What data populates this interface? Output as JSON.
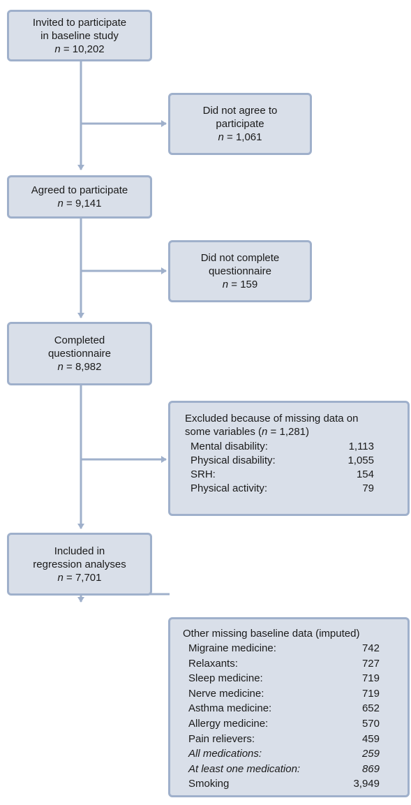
{
  "boxes": {
    "invited": {
      "line1": "Invited to participate",
      "line2": "in baseline study",
      "n_var": "n",
      "n_value": "= 10,202"
    },
    "not_agree": {
      "line1": "Did not agree to",
      "line2": "participate",
      "n_var": "n",
      "n_value": "= 1,061"
    },
    "agreed": {
      "line1": "Agreed to participate",
      "n_var": "n",
      "n_value": "= 9,141"
    },
    "not_complete": {
      "line1": "Did not complete",
      "line2": "questionnaire",
      "n_var": "n",
      "n_value": "= 159"
    },
    "completed": {
      "line1": "Completed",
      "line2": "questionnaire",
      "n_var": "n",
      "n_value": "= 8,982"
    },
    "excluded": {
      "header1": "Excluded because of missing data on",
      "header2_pre": "some variables (",
      "header2_var": "n",
      "header2_post": " = 1,281)",
      "rows": [
        {
          "label": "Mental disability:",
          "value": "1,113"
        },
        {
          "label": "Physical disability:",
          "value": "1,055"
        },
        {
          "label": "SRH:",
          "value": "154"
        },
        {
          "label": "Physical activity:",
          "value": "79"
        }
      ]
    },
    "included": {
      "line1": "Included in",
      "line2": "regression analyses",
      "n_var": "n",
      "n_value": "= 7,701"
    },
    "other_missing": {
      "header": "Other missing baseline data (imputed)",
      "rows": [
        {
          "label": "Migraine medicine:",
          "value": "742"
        },
        {
          "label": "Relaxants:",
          "value": "727"
        },
        {
          "label": "Sleep medicine:",
          "value": "719"
        },
        {
          "label": "Nerve medicine:",
          "value": "719"
        },
        {
          "label": "Asthma medicine:",
          "value": "652"
        },
        {
          "label": "Allergy medicine:",
          "value": "570"
        },
        {
          "label": "Pain relievers:",
          "value": "459"
        },
        {
          "label": "All medications:",
          "value": "259",
          "italic": true
        },
        {
          "label": "At least one medication:",
          "value": "869",
          "italic": true
        },
        {
          "label": "Smoking",
          "value": "3,949"
        }
      ]
    }
  },
  "colors": {
    "box_fill": "#d9dfe9",
    "box_border": "#9fb0cb",
    "connector": "#9fb0cb"
  }
}
